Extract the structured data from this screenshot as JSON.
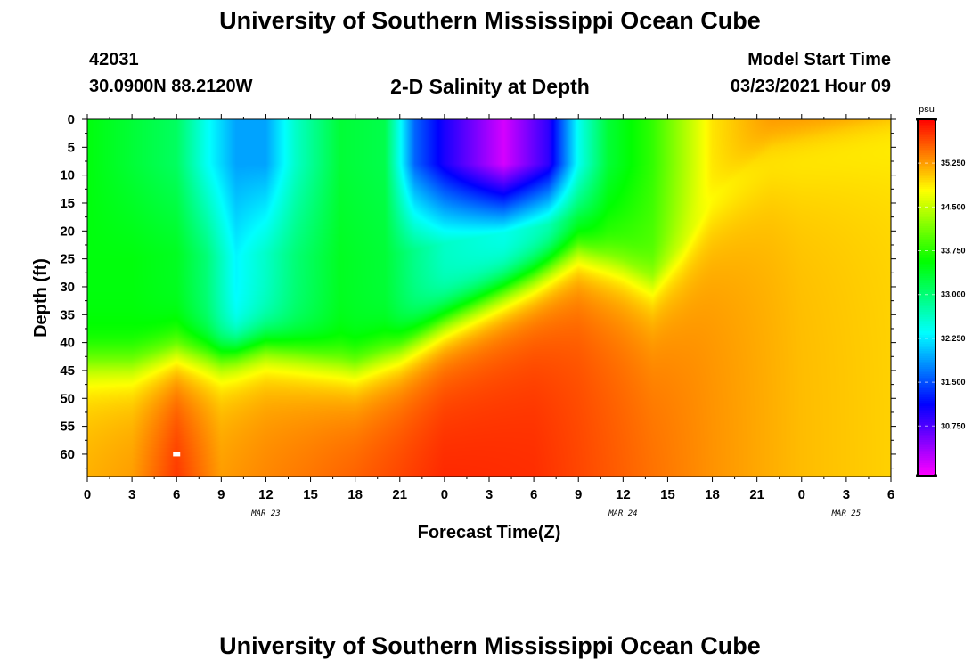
{
  "page": {
    "title_top": "University of Southern Mississippi Ocean Cube",
    "title_bottom": "University of Southern Mississippi Ocean Cube",
    "station_id": "42031",
    "station_coords": "30.0900N 88.2120W",
    "chart_title": "2-D Salinity at Depth",
    "model_label": "Model Start Time",
    "model_time": "03/23/2021 Hour 09"
  },
  "chart_data": {
    "type": "heatmap",
    "title": "2-D Salinity at Depth",
    "xlabel": "Forecast Time(Z)",
    "ylabel": "Depth (ft)",
    "x_hours_range": [
      0,
      54
    ],
    "y_range": [
      0,
      64
    ],
    "x_tick_labels": [
      "0",
      "3",
      "6",
      "9",
      "12",
      "15",
      "18",
      "21",
      "0",
      "3",
      "6",
      "9",
      "12",
      "15",
      "18",
      "21",
      "0",
      "3",
      "6"
    ],
    "y_ticks": [
      0,
      5,
      10,
      15,
      20,
      25,
      30,
      35,
      40,
      45,
      50,
      55,
      60
    ],
    "date_labels": [
      {
        "text": "MAR 23",
        "hour": 12
      },
      {
        "text": "MAR 24",
        "hour": 36
      },
      {
        "text": "MAR 25",
        "hour": 51
      }
    ],
    "colorbar": {
      "unit": "psu",
      "min": 29.9,
      "max": 36.0,
      "ticks": [
        "35.250",
        "34.500",
        "33.750",
        "33.000",
        "32.250",
        "31.500",
        "30.750"
      ],
      "tick_values": [
        35.25,
        34.5,
        33.75,
        33.0,
        32.25,
        31.5,
        30.75
      ]
    },
    "marker": {
      "hour": 6,
      "depth": 60
    },
    "fresh_columns": [
      {
        "hour": 0,
        "surface": 33.5,
        "mid": 33.5
      },
      {
        "hour": 3,
        "surface": 33.3,
        "mid": 33.5
      },
      {
        "hour": 6,
        "surface": 33.1,
        "mid": 33.4
      },
      {
        "hour": 8,
        "surface": 32.4,
        "mid": 33.0
      },
      {
        "hour": 10,
        "surface": 31.9,
        "mid": 32.3
      },
      {
        "hour": 12,
        "surface": 31.9,
        "mid": 32.6
      },
      {
        "hour": 14,
        "surface": 32.6,
        "mid": 33.0
      },
      {
        "hour": 17,
        "surface": 33.3,
        "mid": 33.4
      },
      {
        "hour": 20,
        "surface": 33.2,
        "mid": 33.3
      },
      {
        "hour": 22,
        "surface": 31.6,
        "mid": 32.9
      },
      {
        "hour": 24,
        "surface": 31.0,
        "mid": 32.6
      },
      {
        "hour": 28,
        "surface": 30.1,
        "mid": 32.4
      },
      {
        "hour": 31,
        "surface": 30.9,
        "mid": 32.6
      },
      {
        "hour": 33,
        "surface": 32.4,
        "mid": 33.1
      },
      {
        "hour": 35,
        "surface": 33.3,
        "mid": 33.6
      },
      {
        "hour": 38,
        "surface": 33.8,
        "mid": 33.9
      },
      {
        "hour": 42,
        "surface": 34.9,
        "mid": 34.9
      },
      {
        "hour": 46,
        "surface": 35.3,
        "mid": 35.3
      },
      {
        "hour": 54,
        "surface": 35.4,
        "mid": 35.4
      }
    ],
    "interface_depth_ft": [
      {
        "hour": 0,
        "depth": 43
      },
      {
        "hour": 3,
        "depth": 43
      },
      {
        "hour": 6,
        "depth": 40
      },
      {
        "hour": 9,
        "depth": 42
      },
      {
        "hour": 12,
        "depth": 40
      },
      {
        "hour": 18,
        "depth": 43
      },
      {
        "hour": 21,
        "depth": 40
      },
      {
        "hour": 24,
        "depth": 35
      },
      {
        "hour": 27,
        "depth": 31
      },
      {
        "hour": 30,
        "depth": 27
      },
      {
        "hour": 33,
        "depth": 22
      },
      {
        "hour": 36,
        "depth": 25
      },
      {
        "hour": 38,
        "depth": 28
      },
      {
        "hour": 40,
        "depth": 22
      },
      {
        "hour": 42,
        "depth": 14
      },
      {
        "hour": 46,
        "depth": 5
      },
      {
        "hour": 54,
        "depth": 0
      }
    ],
    "deep_columns": [
      {
        "hour": 0,
        "value": 35.2
      },
      {
        "hour": 3,
        "value": 35.3
      },
      {
        "hour": 6,
        "value": 35.8
      },
      {
        "hour": 9,
        "value": 35.3
      },
      {
        "hour": 15,
        "value": 35.5
      },
      {
        "hour": 24,
        "value": 35.85
      },
      {
        "hour": 30,
        "value": 35.8
      },
      {
        "hour": 36,
        "value": 35.55
      },
      {
        "hour": 42,
        "value": 35.3
      },
      {
        "hour": 48,
        "value": 35.1
      },
      {
        "hour": 54,
        "value": 35.0
      }
    ]
  }
}
